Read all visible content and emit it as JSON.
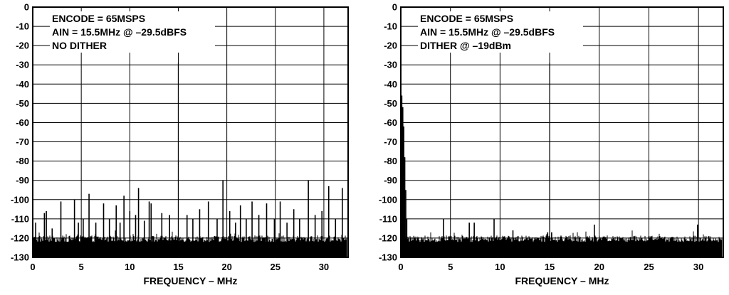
{
  "chart_data": [
    {
      "type": "line",
      "xlabel": "FREQUENCY – MHz",
      "ylabel": "",
      "xlim": [
        0,
        32.5
      ],
      "ylim": [
        -130,
        0
      ],
      "xticks": [
        0,
        5,
        10,
        15,
        20,
        25,
        30
      ],
      "yticks": [
        0,
        -10,
        -20,
        -30,
        -40,
        -50,
        -60,
        -70,
        -80,
        -90,
        -100,
        -110,
        -120,
        -130
      ],
      "grid": true,
      "annotations": [
        "ENCODE = 65MSPS",
        "AIN = 15.5MHz @ –29.5dBFS",
        "NO DITHER"
      ],
      "noise_floor": -122,
      "spurs": [
        {
          "x": 0.3,
          "y": -112
        },
        {
          "x": 1.2,
          "y": -107
        },
        {
          "x": 1.4,
          "y": -106
        },
        {
          "x": 2.0,
          "y": -115
        },
        {
          "x": 2.9,
          "y": -101
        },
        {
          "x": 4.3,
          "y": -100
        },
        {
          "x": 4.7,
          "y": -112
        },
        {
          "x": 5.2,
          "y": -110
        },
        {
          "x": 5.8,
          "y": -97
        },
        {
          "x": 6.5,
          "y": -112
        },
        {
          "x": 7.3,
          "y": -102
        },
        {
          "x": 7.9,
          "y": -110
        },
        {
          "x": 8.6,
          "y": -103
        },
        {
          "x": 9.0,
          "y": -112
        },
        {
          "x": 9.4,
          "y": -98
        },
        {
          "x": 10.0,
          "y": -106
        },
        {
          "x": 10.6,
          "y": -108
        },
        {
          "x": 10.9,
          "y": -94
        },
        {
          "x": 11.5,
          "y": -111
        },
        {
          "x": 12.0,
          "y": -101
        },
        {
          "x": 12.2,
          "y": -102
        },
        {
          "x": 13.3,
          "y": -107
        },
        {
          "x": 14.1,
          "y": -108
        },
        {
          "x": 15.0,
          "y": -29
        },
        {
          "x": 15.9,
          "y": -108
        },
        {
          "x": 16.5,
          "y": -110
        },
        {
          "x": 17.2,
          "y": -105
        },
        {
          "x": 18.1,
          "y": -101
        },
        {
          "x": 19.0,
          "y": -110
        },
        {
          "x": 19.6,
          "y": -90
        },
        {
          "x": 20.3,
          "y": -106
        },
        {
          "x": 20.9,
          "y": -112
        },
        {
          "x": 21.4,
          "y": -103
        },
        {
          "x": 22.0,
          "y": -110
        },
        {
          "x": 22.6,
          "y": -101
        },
        {
          "x": 23.3,
          "y": -108
        },
        {
          "x": 24.1,
          "y": -102
        },
        {
          "x": 24.9,
          "y": -110
        },
        {
          "x": 25.5,
          "y": -101
        },
        {
          "x": 26.2,
          "y": -112
        },
        {
          "x": 26.9,
          "y": -105
        },
        {
          "x": 27.5,
          "y": -110
        },
        {
          "x": 28.4,
          "y": -90
        },
        {
          "x": 29.1,
          "y": -108
        },
        {
          "x": 29.8,
          "y": -106
        },
        {
          "x": 30.5,
          "y": -93
        },
        {
          "x": 31.2,
          "y": -110
        },
        {
          "x": 31.9,
          "y": -94
        }
      ]
    },
    {
      "type": "line",
      "xlabel": "FREQUENCY – MHz",
      "ylabel": "",
      "xlim": [
        0,
        32.5
      ],
      "ylim": [
        -130,
        0
      ],
      "xticks": [
        0,
        5,
        10,
        15,
        20,
        25,
        30
      ],
      "yticks": [
        0,
        -10,
        -20,
        -30,
        -40,
        -50,
        -60,
        -70,
        -80,
        -90,
        -100,
        -110,
        -120,
        -130
      ],
      "grid": true,
      "annotations": [
        "ENCODE = 65MSPS",
        "AIN = 15.5MHz @ –29.5dBFS",
        "DITHER @ –19dBm"
      ],
      "noise_floor": -122,
      "spurs": [
        {
          "x": 0.1,
          "y": -46
        },
        {
          "x": 0.2,
          "y": -52
        },
        {
          "x": 0.3,
          "y": -62
        },
        {
          "x": 0.4,
          "y": -78
        },
        {
          "x": 0.5,
          "y": -95
        },
        {
          "x": 0.6,
          "y": -110
        },
        {
          "x": 4.3,
          "y": -110
        },
        {
          "x": 6.9,
          "y": -112
        },
        {
          "x": 7.4,
          "y": -112
        },
        {
          "x": 9.4,
          "y": -110
        },
        {
          "x": 11.3,
          "y": -116
        },
        {
          "x": 14.8,
          "y": -117
        },
        {
          "x": 15.0,
          "y": -29
        },
        {
          "x": 15.2,
          "y": -117
        },
        {
          "x": 19.5,
          "y": -113
        },
        {
          "x": 29.9,
          "y": -113
        }
      ]
    }
  ]
}
